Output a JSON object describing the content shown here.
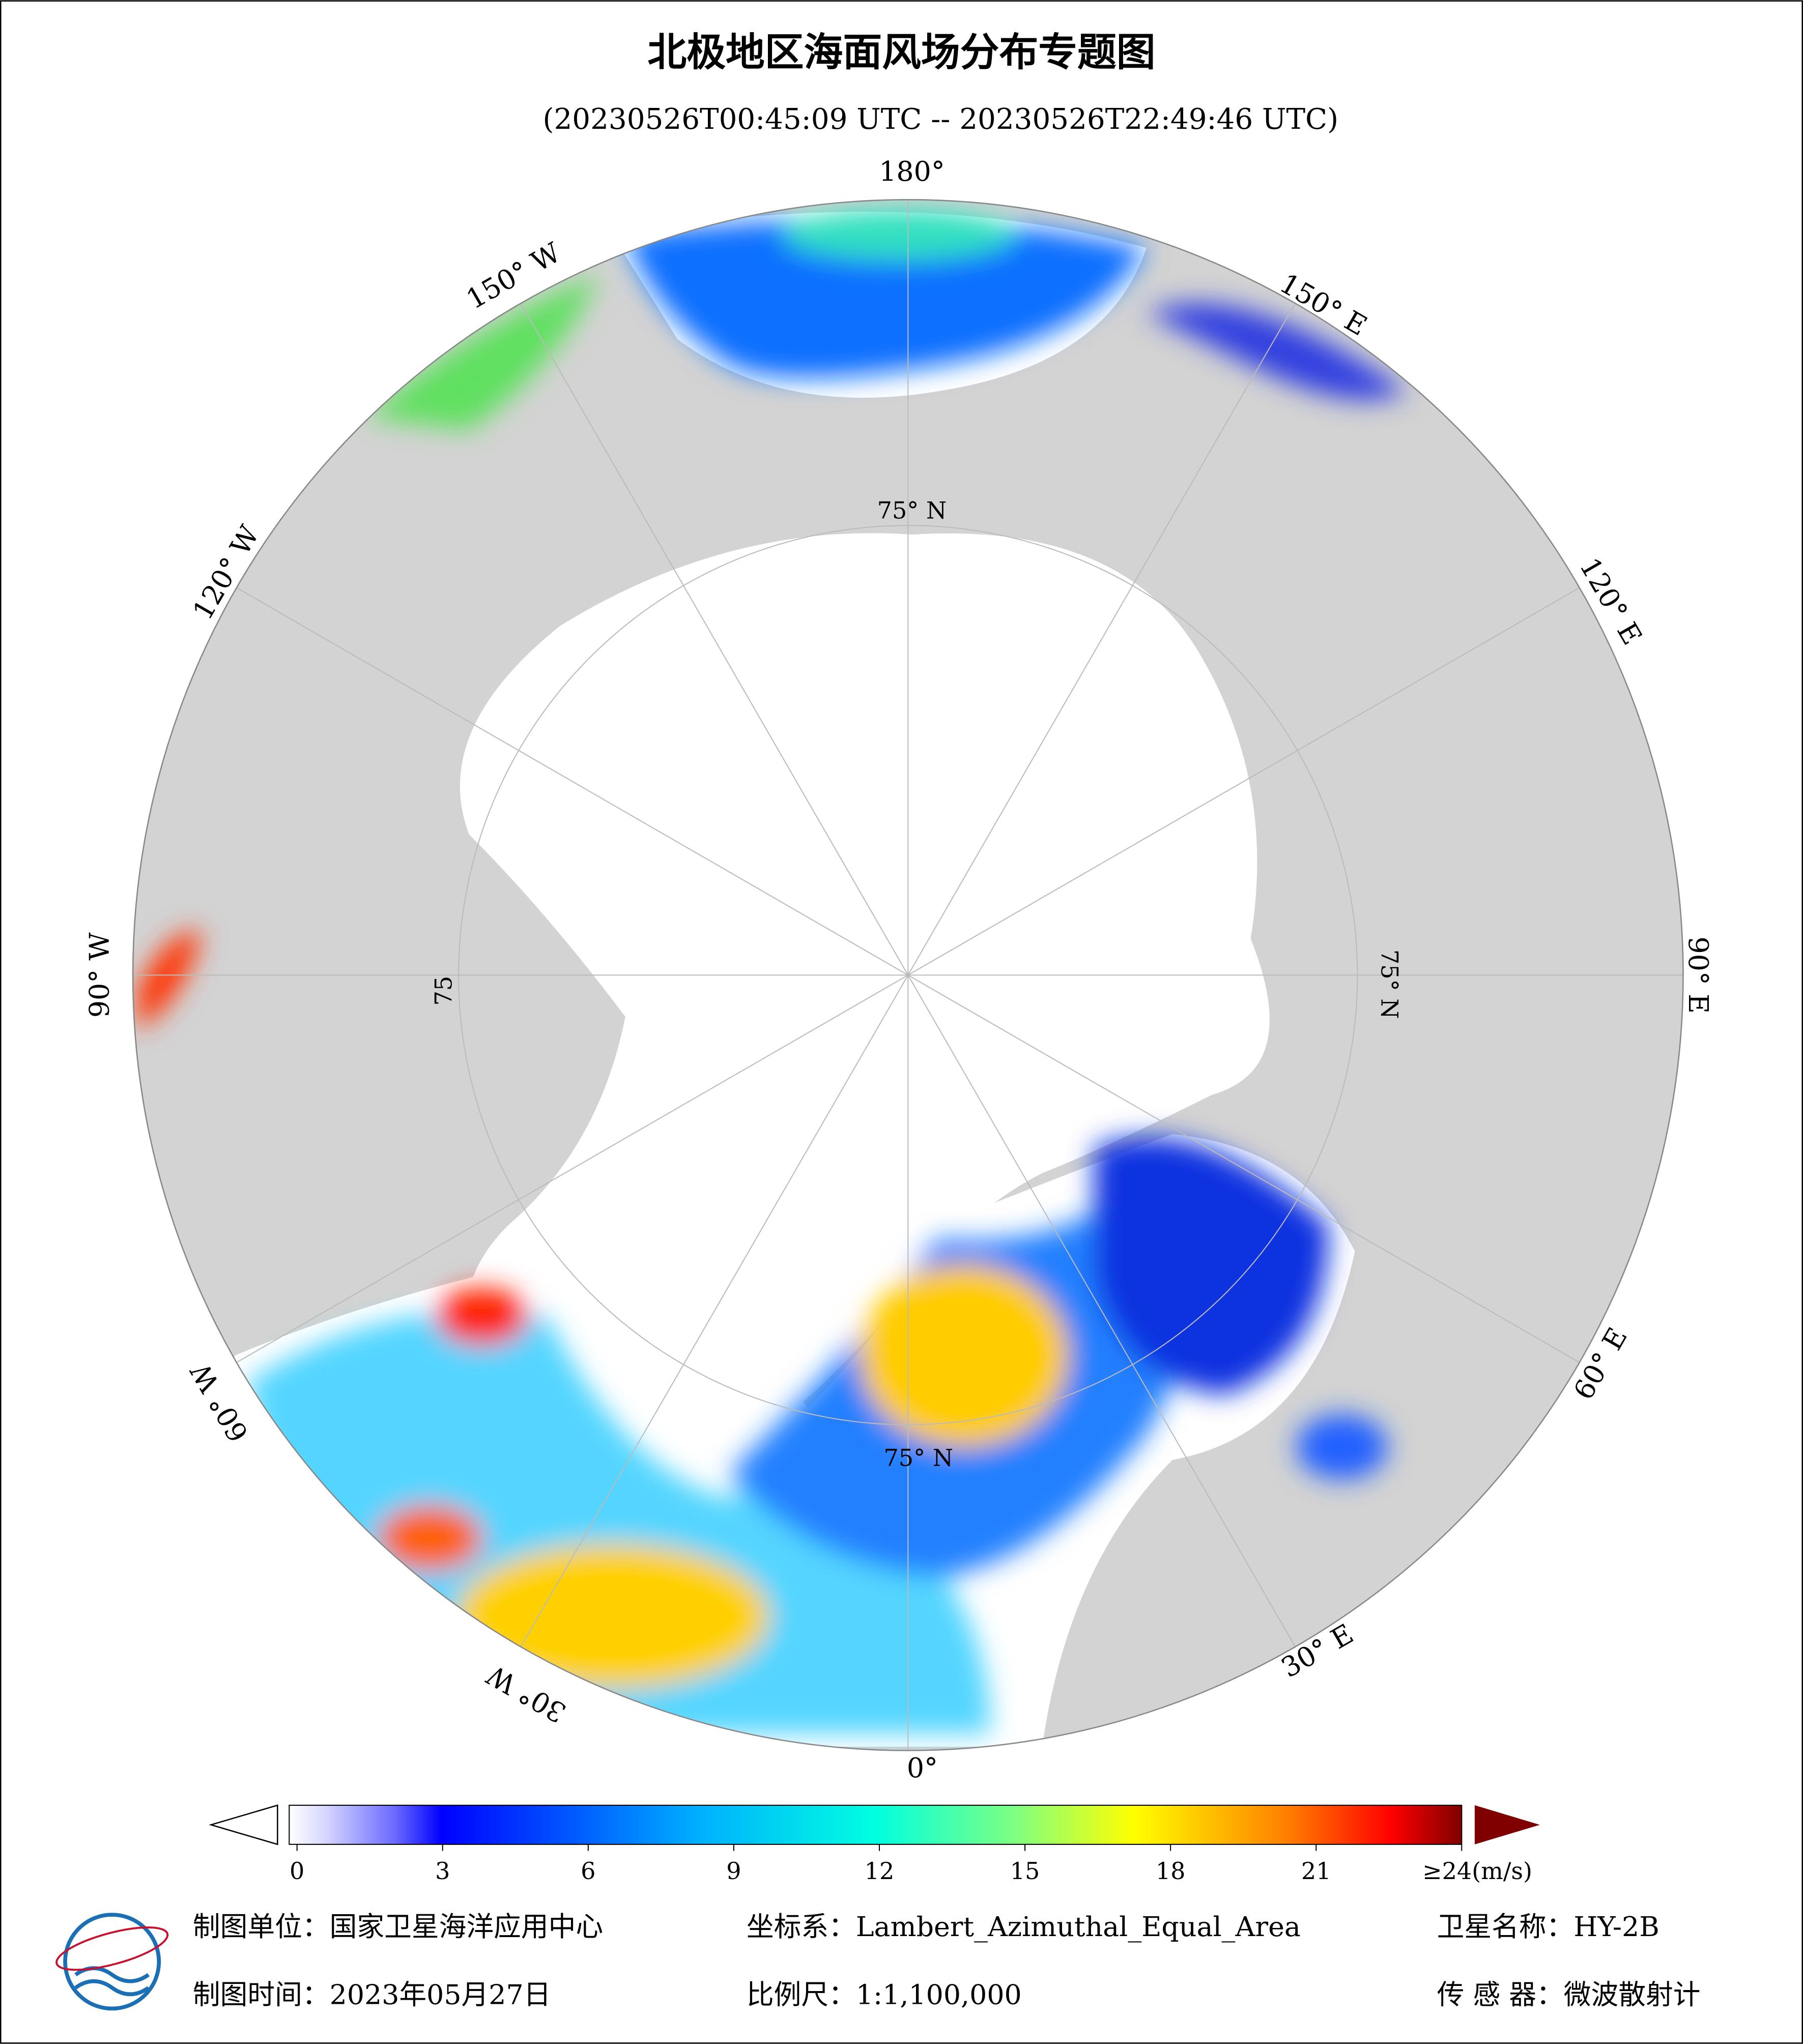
{
  "header": {
    "title": "北极地区海面风场分布专题图",
    "subtitle": "(20230526T00:45:09 UTC -- 20230526T22:49:46 UTC)"
  },
  "map": {
    "lon_labels": [
      "180°",
      "150° E",
      "120° E",
      "90° E",
      "60° E",
      "30° E",
      "0°",
      "30° W",
      "60° W",
      "90° W",
      "120° W",
      "150° W"
    ],
    "lat_labels": [
      "75° N",
      "75° N",
      "75° N",
      "75"
    ]
  },
  "colorbar": {
    "range": [
      0,
      24
    ],
    "ticks": [
      0,
      3,
      6,
      9,
      12,
      15,
      18,
      21,
      {
        "value": 24,
        "label": "≥24(m/s)"
      }
    ]
  },
  "footer": {
    "left": [
      "制图单位：国家卫星海洋应用中心",
      "制图时间：2023年05月27日"
    ],
    "middle": [
      "坐标系：Lambert_Azimuthal_Equal_Area",
      "比例尺：1:1,100,000"
    ],
    "right": [
      "卫星名称：HY-2B",
      "传 感 器：微波散射计"
    ]
  }
}
